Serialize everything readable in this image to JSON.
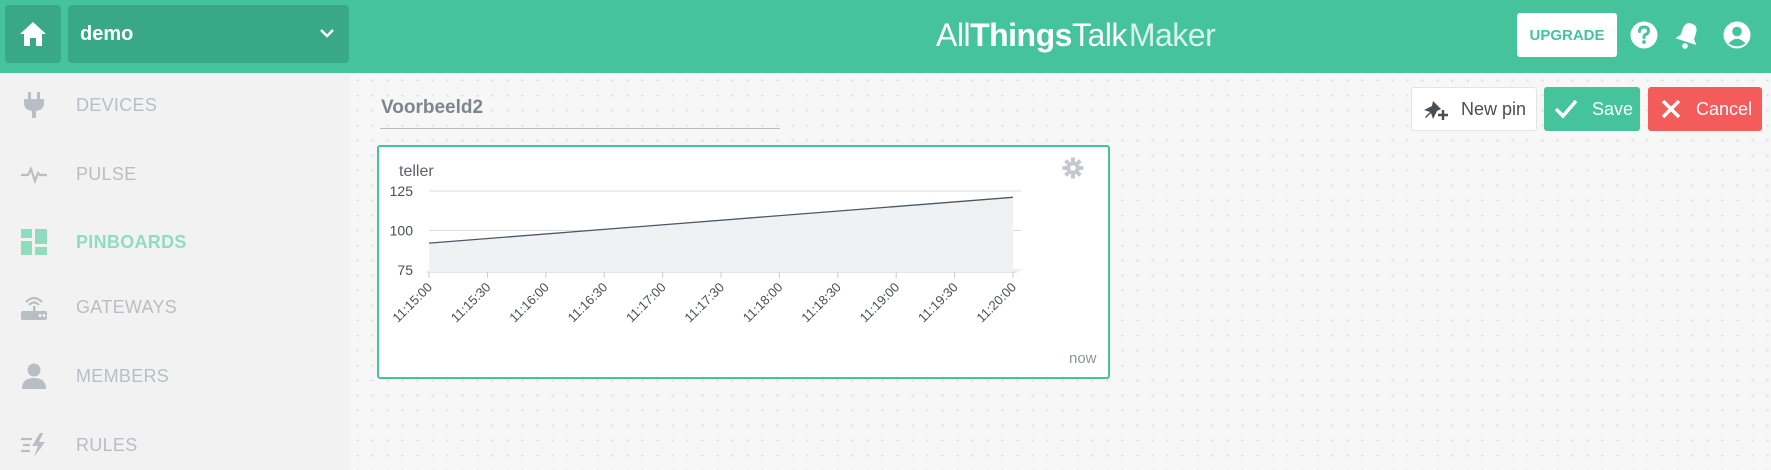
{
  "header": {
    "project": "demo",
    "brand": {
      "part1": "All",
      "part2": "Things",
      "part3": "Talk",
      "part4": "Maker"
    },
    "upgrade_label": "UPGRADE"
  },
  "sidebar": {
    "items": [
      {
        "label": "DEVICES",
        "icon": "plug-icon",
        "active": false
      },
      {
        "label": "PULSE",
        "icon": "pulse-icon",
        "active": false
      },
      {
        "label": "PINBOARDS",
        "icon": "pinboards-icon",
        "active": true
      },
      {
        "label": "GATEWAYS",
        "icon": "gateway-icon",
        "active": false
      },
      {
        "label": "MEMBERS",
        "icon": "person-icon",
        "active": false
      },
      {
        "label": "RULES",
        "icon": "rules-icon",
        "active": false
      }
    ]
  },
  "board": {
    "title": "Voorbeeld2",
    "new_pin_label": "New pin",
    "save_label": "Save",
    "cancel_label": "Cancel"
  },
  "pin": {
    "name": "teller",
    "footer": "now"
  },
  "colors": {
    "accent": "#45c39a",
    "accent_dark": "#38a984",
    "cancel": "#f45b5b"
  },
  "chart_data": {
    "type": "area",
    "title": "",
    "xlabel": "",
    "ylabel": "",
    "ylim": [
      75,
      125
    ],
    "yticks": [
      75,
      100,
      125
    ],
    "categories": [
      "11:15:00",
      "11:15:30",
      "11:16:00",
      "11:16:30",
      "11:17:00",
      "11:17:30",
      "11:18:00",
      "11:18:30",
      "11:19:00",
      "11:19:30",
      "11:20:00"
    ],
    "series": [
      {
        "x": [
          "11:15:00",
          "11:20:00"
        ],
        "values": [
          92,
          121
        ]
      }
    ],
    "grid": true
  }
}
